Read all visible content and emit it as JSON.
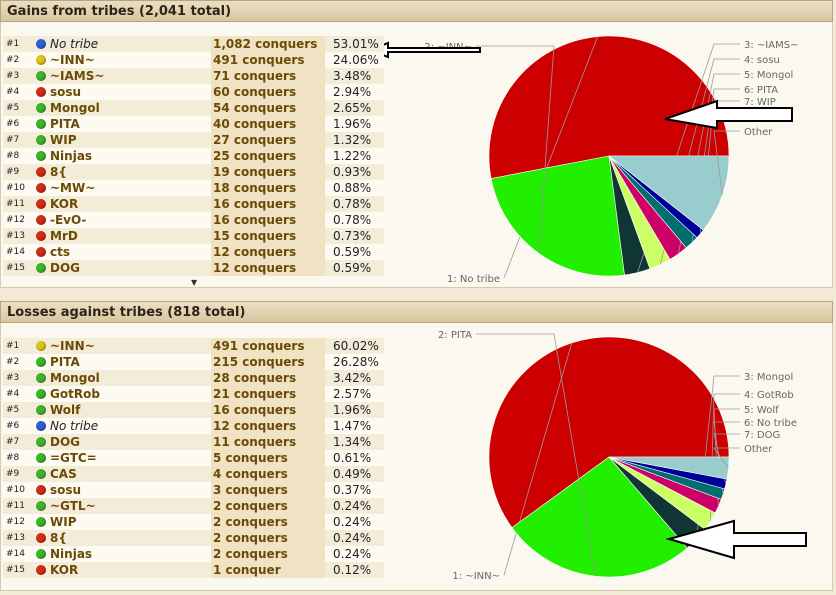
{
  "gains": {
    "title": "Gains from tribes (2,041 total)",
    "rows": [
      {
        "rank": "#1",
        "name": "No tribe",
        "conquers": "1,082 conquers",
        "pct": "53.01%",
        "dot": "#2a5fd6",
        "italic": true
      },
      {
        "rank": "#2",
        "name": "~INN~",
        "conquers": "491 conquers",
        "pct": "24.06%",
        "dot": "#e0c21a",
        "italic": false
      },
      {
        "rank": "#3",
        "name": "~IAMS~",
        "conquers": "71 conquers",
        "pct": "3.48%",
        "dot": "#3bb52a",
        "italic": false
      },
      {
        "rank": "#4",
        "name": "sosu",
        "conquers": "60 conquers",
        "pct": "2.94%",
        "dot": "#d42a1a",
        "italic": false
      },
      {
        "rank": "#5",
        "name": "Mongol",
        "conquers": "54 conquers",
        "pct": "2.65%",
        "dot": "#3bb52a",
        "italic": false
      },
      {
        "rank": "#6",
        "name": "PITA",
        "conquers": "40 conquers",
        "pct": "1.96%",
        "dot": "#3bb52a",
        "italic": false
      },
      {
        "rank": "#7",
        "name": "WIP",
        "conquers": "27 conquers",
        "pct": "1.32%",
        "dot": "#3bb52a",
        "italic": false
      },
      {
        "rank": "#8",
        "name": "Ninjas",
        "conquers": "25 conquers",
        "pct": "1.22%",
        "dot": "#3bb52a",
        "italic": false
      },
      {
        "rank": "#9",
        "name": "8{",
        "conquers": "19 conquers",
        "pct": "0.93%",
        "dot": "#d42a1a",
        "italic": false
      },
      {
        "rank": "#10",
        "name": "~MW~",
        "conquers": "18 conquers",
        "pct": "0.88%",
        "dot": "#d42a1a",
        "italic": false
      },
      {
        "rank": "#11",
        "name": "KOR",
        "conquers": "16 conquers",
        "pct": "0.78%",
        "dot": "#d42a1a",
        "italic": false
      },
      {
        "rank": "#12",
        "name": "-EvO-",
        "conquers": "16 conquers",
        "pct": "0.78%",
        "dot": "#d42a1a",
        "italic": false
      },
      {
        "rank": "#13",
        "name": "MrD",
        "conquers": "15 conquers",
        "pct": "0.73%",
        "dot": "#d42a1a",
        "italic": false
      },
      {
        "rank": "#14",
        "name": "cts",
        "conquers": "12 conquers",
        "pct": "0.59%",
        "dot": "#d42a1a",
        "italic": false
      },
      {
        "rank": "#15",
        "name": "DOG",
        "conquers": "12 conquers",
        "pct": "0.59%",
        "dot": "#3bb52a",
        "italic": false
      }
    ],
    "scroll_arrow": "▼",
    "pie": {
      "slices": [
        {
          "label": "1: No tribe",
          "value": 53.01,
          "color": "#cc0000"
        },
        {
          "label": "2: ~INN~",
          "value": 24.06,
          "color": "#22ee00"
        },
        {
          "label": "3: ~IAMS~",
          "value": 3.48,
          "color": "#0f3535"
        },
        {
          "label": "4: sosu",
          "value": 2.94,
          "color": "#ccff66"
        },
        {
          "label": "5: Mongol",
          "value": 2.65,
          "color": "#cc0066"
        },
        {
          "label": "6: PITA",
          "value": 1.96,
          "color": "#006e6e"
        },
        {
          "label": "7: WIP",
          "value": 1.32,
          "color": "#000099"
        },
        {
          "label": "Other",
          "value": 10.58,
          "color": "#99cccc"
        }
      ]
    }
  },
  "losses": {
    "title": "Losses against tribes (818 total)",
    "rows": [
      {
        "rank": "#1",
        "name": "~INN~",
        "conquers": "491 conquers",
        "pct": "60.02%",
        "dot": "#e0c21a",
        "italic": false
      },
      {
        "rank": "#2",
        "name": "PITA",
        "conquers": "215 conquers",
        "pct": "26.28%",
        "dot": "#3bb52a",
        "italic": false
      },
      {
        "rank": "#3",
        "name": "Mongol",
        "conquers": "28 conquers",
        "pct": "3.42%",
        "dot": "#3bb52a",
        "italic": false
      },
      {
        "rank": "#4",
        "name": "GotRob",
        "conquers": "21 conquers",
        "pct": "2.57%",
        "dot": "#3bb52a",
        "italic": false
      },
      {
        "rank": "#5",
        "name": "Wolf",
        "conquers": "16 conquers",
        "pct": "1.96%",
        "dot": "#3bb52a",
        "italic": false
      },
      {
        "rank": "#6",
        "name": "No tribe",
        "conquers": "12 conquers",
        "pct": "1.47%",
        "dot": "#2a5fd6",
        "italic": true
      },
      {
        "rank": "#7",
        "name": "DOG",
        "conquers": "11 conquers",
        "pct": "1.34%",
        "dot": "#3bb52a",
        "italic": false
      },
      {
        "rank": "#8",
        "name": "=GTC=",
        "conquers": "5 conquers",
        "pct": "0.61%",
        "dot": "#3bb52a",
        "italic": false
      },
      {
        "rank": "#9",
        "name": "CAS",
        "conquers": "4 conquers",
        "pct": "0.49%",
        "dot": "#3bb52a",
        "italic": false
      },
      {
        "rank": "#10",
        "name": "sosu",
        "conquers": "3 conquers",
        "pct": "0.37%",
        "dot": "#d42a1a",
        "italic": false
      },
      {
        "rank": "#11",
        "name": "~GTL~",
        "conquers": "2 conquers",
        "pct": "0.24%",
        "dot": "#3bb52a",
        "italic": false
      },
      {
        "rank": "#12",
        "name": "WIP",
        "conquers": "2 conquers",
        "pct": "0.24%",
        "dot": "#3bb52a",
        "italic": false
      },
      {
        "rank": "#13",
        "name": "8{",
        "conquers": "2 conquers",
        "pct": "0.24%",
        "dot": "#d42a1a",
        "italic": false
      },
      {
        "rank": "#14",
        "name": "Ninjas",
        "conquers": "2 conquers",
        "pct": "0.24%",
        "dot": "#3bb52a",
        "italic": false
      },
      {
        "rank": "#15",
        "name": "KOR",
        "conquers": "1 conquer",
        "pct": "0.12%",
        "dot": "#d42a1a",
        "italic": false
      }
    ],
    "pie": {
      "slices": [
        {
          "label": "1: ~INN~",
          "value": 60.02,
          "color": "#cc0000"
        },
        {
          "label": "2: PITA",
          "value": 26.28,
          "color": "#22ee00"
        },
        {
          "label": "3: Mongol",
          "value": 3.42,
          "color": "#0f3535"
        },
        {
          "label": "4: GotRob",
          "value": 2.57,
          "color": "#ccff66"
        },
        {
          "label": "5: Wolf",
          "value": 1.96,
          "color": "#cc0066"
        },
        {
          "label": "6: No tribe",
          "value": 1.47,
          "color": "#006e6e"
        },
        {
          "label": "7: DOG",
          "value": 1.34,
          "color": "#000099"
        },
        {
          "label": "Other",
          "value": 2.94,
          "color": "#99cccc"
        }
      ]
    }
  }
}
